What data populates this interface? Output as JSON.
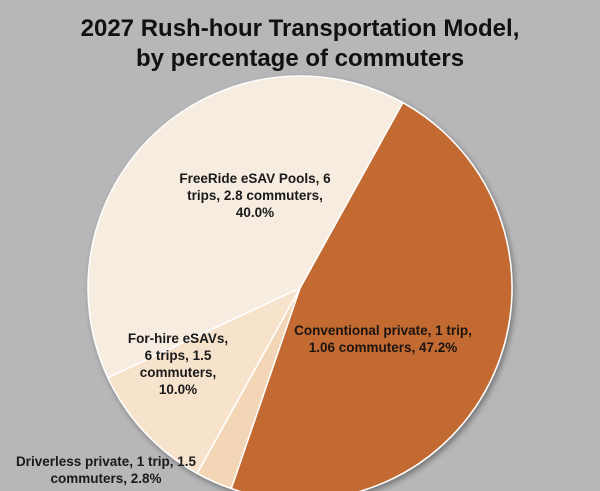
{
  "chart_data": {
    "type": "pie",
    "title_lines": [
      "2027 Rush-hour Transportation Model,",
      "by percentage of commuters"
    ],
    "slices": [
      {
        "name": "Conventional private",
        "value": 47.2,
        "color": "#c26a33",
        "label_lines": [
          "Conventional private, 1 trip,",
          "1.06 commuters, 47.2%"
        ]
      },
      {
        "name": "Driverless private",
        "value": 2.8,
        "color": "#f3d6b6",
        "label_lines": [
          "Driverless private, 1 trip, 1.5",
          "commuters, 2.8%"
        ]
      },
      {
        "name": "For-hire eSAVs",
        "value": 10.0,
        "color": "#f7e3cc",
        "label_lines": [
          "For-hire eSAVs,",
          "6 trips, 1.5",
          "commuters,",
          "10.0%"
        ]
      },
      {
        "name": "FreeRide eSAV Pools",
        "value": 40.0,
        "color": "#f6ece0",
        "label_lines": [
          "FreeRide eSAV Pools, 6",
          "trips, 2.8 commuters,",
          "40.0%"
        ]
      }
    ]
  }
}
